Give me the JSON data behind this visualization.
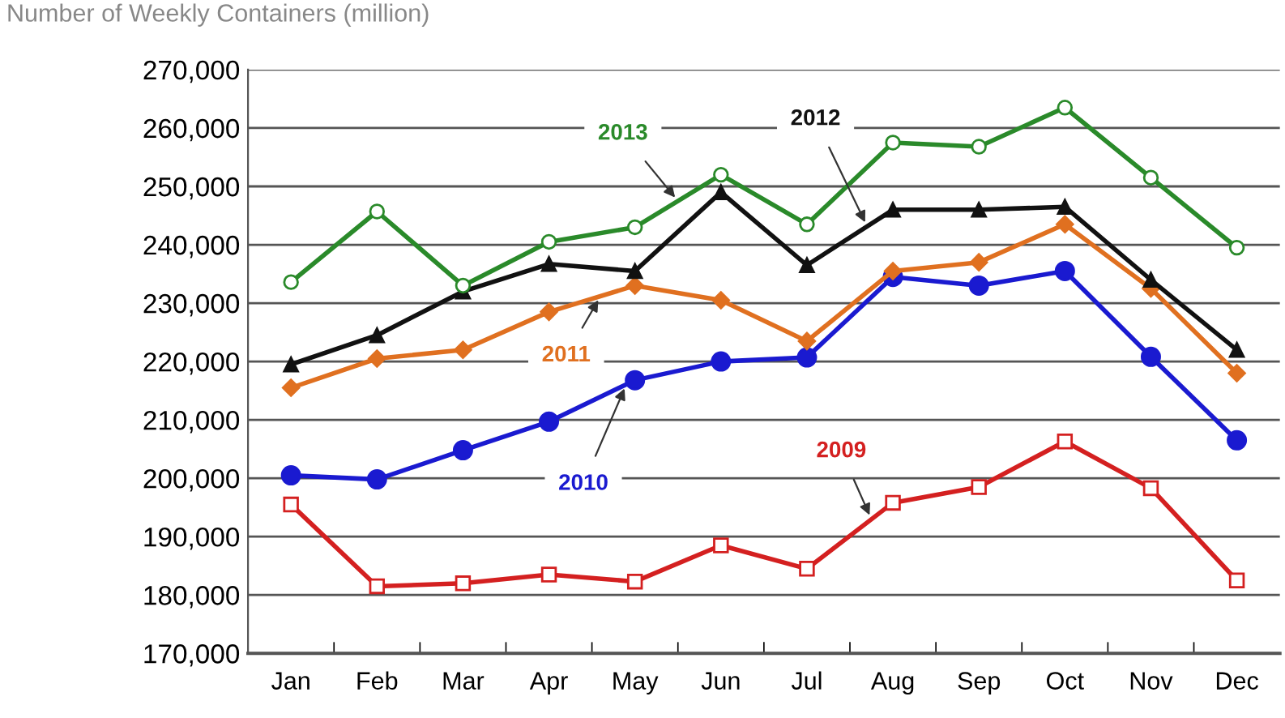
{
  "chart_data": {
    "type": "line",
    "title": "Number of Weekly Containers (million)",
    "categories": [
      "Jan",
      "Feb",
      "Mar",
      "Apr",
      "May",
      "Jun",
      "Jul",
      "Aug",
      "Sep",
      "Oct",
      "Nov",
      "Dec"
    ],
    "ylim": [
      170000,
      270000
    ],
    "yticks": [
      {
        "value": 170000,
        "label": "170,000"
      },
      {
        "value": 180000,
        "label": "180,000"
      },
      {
        "value": 190000,
        "label": "190,000"
      },
      {
        "value": 200000,
        "label": "200,000"
      },
      {
        "value": 210000,
        "label": "210,000"
      },
      {
        "value": 220000,
        "label": "220,000"
      },
      {
        "value": 230000,
        "label": "230,000"
      },
      {
        "value": 240000,
        "label": "240,000"
      },
      {
        "value": 250000,
        "label": "250,000"
      },
      {
        "value": 260000,
        "label": "260,000"
      },
      {
        "value": 270000,
        "label": "270,000"
      }
    ],
    "grid": "y",
    "legend": false,
    "series": [
      {
        "name": "2009",
        "color": "#d42020",
        "marker": "square",
        "values": [
          195500,
          181500,
          182000,
          183500,
          182300,
          188500,
          184500,
          195800,
          198500,
          206300,
          198300,
          182500
        ]
      },
      {
        "name": "2010",
        "color": "#1a1ad0",
        "marker": "circle",
        "values": [
          200500,
          199800,
          204800,
          209700,
          216800,
          220000,
          220700,
          234500,
          233000,
          235500,
          220800,
          206500
        ]
      },
      {
        "name": "2011",
        "color": "#e07020",
        "marker": "diamond",
        "values": [
          215500,
          220500,
          222000,
          228500,
          233000,
          230500,
          223500,
          235500,
          237000,
          243500,
          232500,
          218000
        ]
      },
      {
        "name": "2012",
        "color": "#111111",
        "marker": "triangle",
        "values": [
          219500,
          224500,
          232000,
          236700,
          235500,
          249000,
          236500,
          246000,
          246000,
          246500,
          234000,
          222000
        ]
      },
      {
        "name": "2013",
        "color": "#2a8a2a",
        "marker": "circle",
        "values": [
          233600,
          245700,
          233000,
          240500,
          243000,
          252000,
          243500,
          257500,
          256800,
          263500,
          251500,
          239500
        ]
      }
    ]
  }
}
